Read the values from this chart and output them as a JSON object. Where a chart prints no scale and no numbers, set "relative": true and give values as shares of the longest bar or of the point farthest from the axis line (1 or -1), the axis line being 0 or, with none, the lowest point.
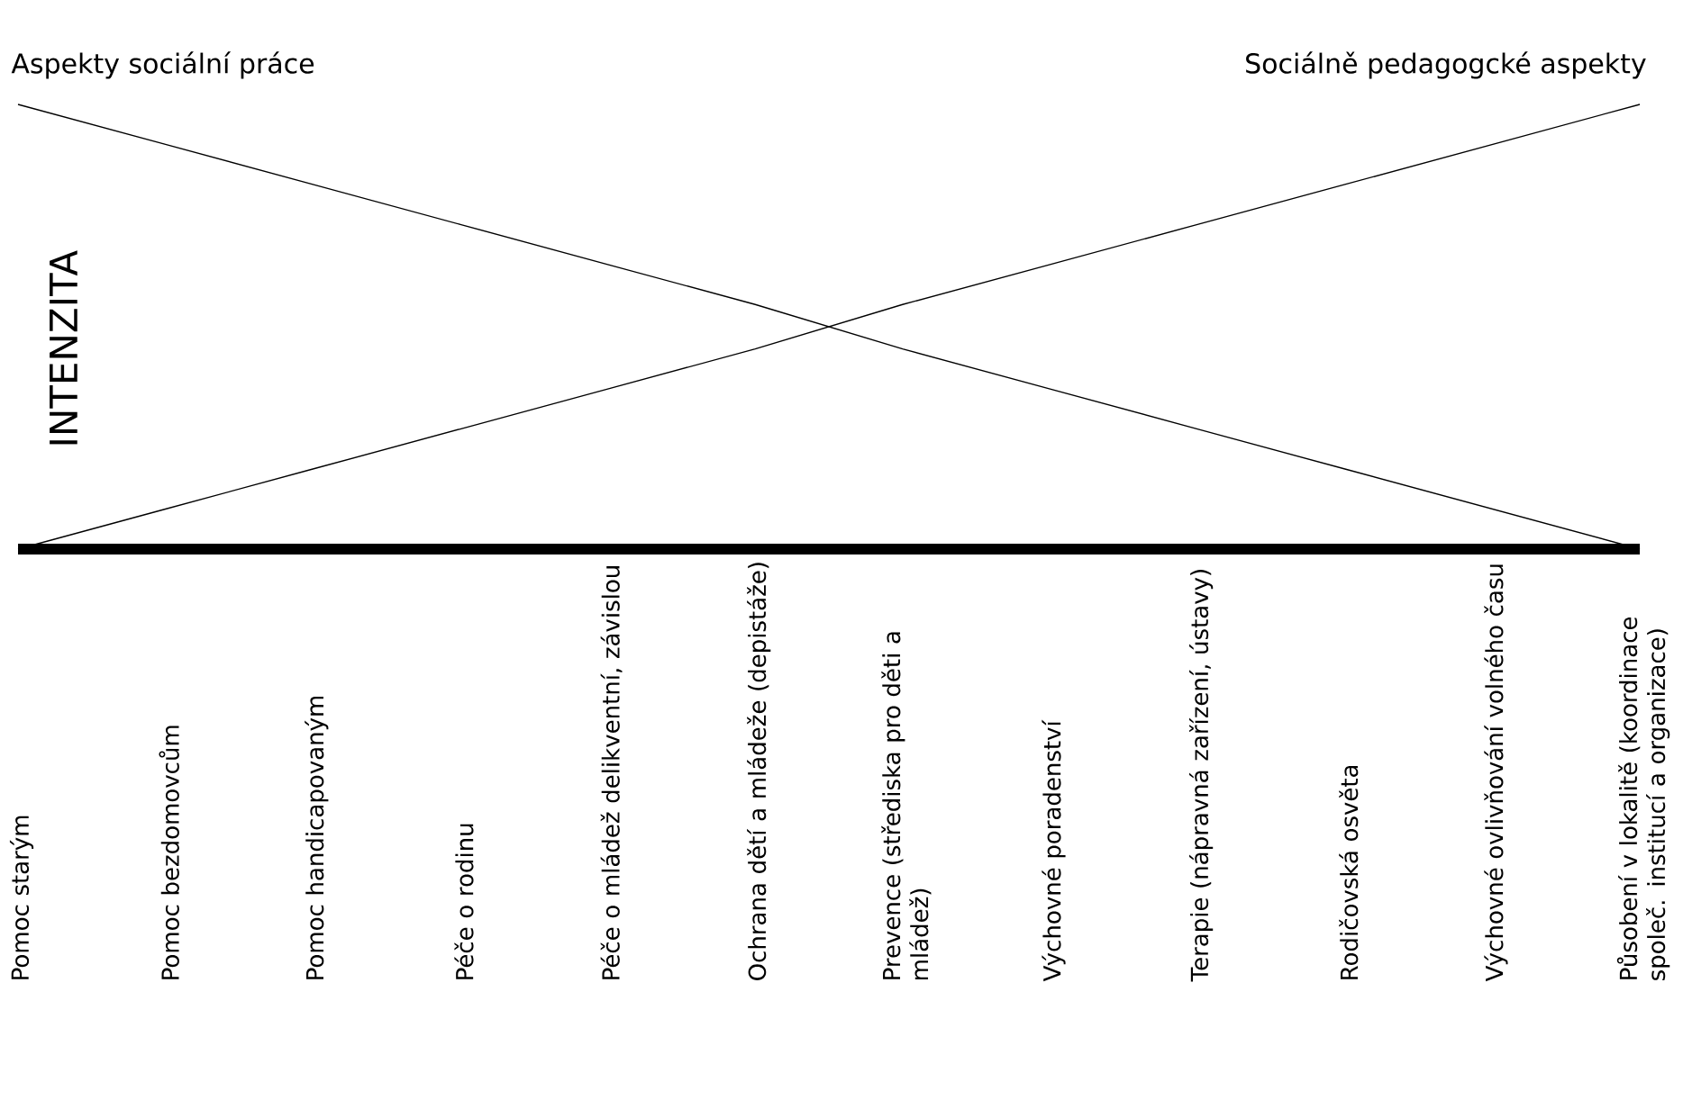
{
  "chart_data": {
    "type": "line",
    "relative": true,
    "ylabel": "INTENZITA",
    "marker": "none",
    "categories": [
      "Pomoc starým",
      "Pomoc bezdomovcům",
      "Pomoc handicapovaným",
      "Péče o rodinu",
      "Péče o mládež delikventní, závislou",
      "Ochrana dětí a mládeže (depistáže)",
      "Prevence (střediska pro děti a mládež)",
      "Výchovné poradenství",
      "Terapie (nápravná zařízení, ústavy)",
      "Rodičovská osvěta",
      "Výchovné ovlivňování volného času",
      "Působení v lokalitě (koordinace společ. institucí a organizace)"
    ],
    "series": [
      {
        "name": "Aspekty sociální práce",
        "color": "#000000",
        "values": [
          1,
          0.91,
          0.82,
          0.73,
          0.64,
          0.55,
          0.45,
          0.36,
          0.27,
          0.18,
          0.09,
          0
        ]
      },
      {
        "name": "Sociálně pedagogcké aspekty",
        "color": "#000000",
        "values": [
          0,
          0.09,
          0.18,
          0.27,
          0.36,
          0.45,
          0.55,
          0.64,
          0.73,
          0.82,
          0.91,
          1
        ]
      }
    ]
  }
}
